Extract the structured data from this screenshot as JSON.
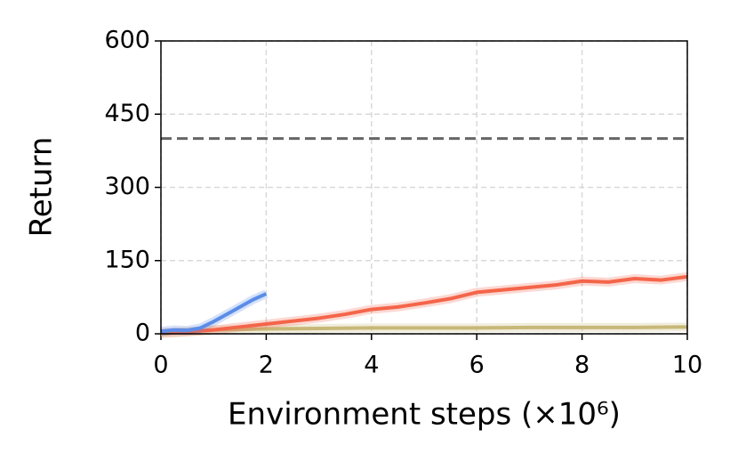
{
  "chart_data": {
    "type": "line",
    "xlabel": "Environment steps (×10⁶)",
    "ylabel": "Return",
    "xlim": [
      0,
      10
    ],
    "ylim": [
      0,
      600
    ],
    "xticks": [
      0,
      2,
      4,
      6,
      8,
      10
    ],
    "yticks": [
      0,
      150,
      300,
      450,
      600
    ],
    "grid": true,
    "reference_line": {
      "value": 400,
      "color": "#666666"
    },
    "series": [
      {
        "color": "#c8b878",
        "x": [
          0,
          0.5,
          1,
          1.5,
          2,
          3,
          4,
          5,
          6,
          7,
          8,
          9,
          10
        ],
        "values": [
          0,
          4,
          8,
          9,
          10,
          11,
          12,
          12,
          12,
          13,
          13,
          13,
          14
        ]
      },
      {
        "color": "#f4654a",
        "x": [
          0,
          0.5,
          1,
          1.5,
          2,
          2.5,
          3,
          3.5,
          4,
          4.5,
          5,
          5.5,
          6,
          6.5,
          7,
          7.5,
          8,
          8.5,
          9,
          9.5,
          10
        ],
        "values": [
          2,
          4,
          8,
          14,
          20,
          26,
          32,
          40,
          50,
          55,
          63,
          72,
          85,
          90,
          95,
          100,
          108,
          106,
          113,
          110,
          117
        ]
      },
      {
        "color": "#5b8de8",
        "x": [
          0,
          0.25,
          0.5,
          0.75,
          1,
          1.25,
          1.5,
          1.75,
          2
        ],
        "values": [
          5,
          8,
          7,
          12,
          25,
          40,
          55,
          70,
          82
        ]
      }
    ]
  }
}
